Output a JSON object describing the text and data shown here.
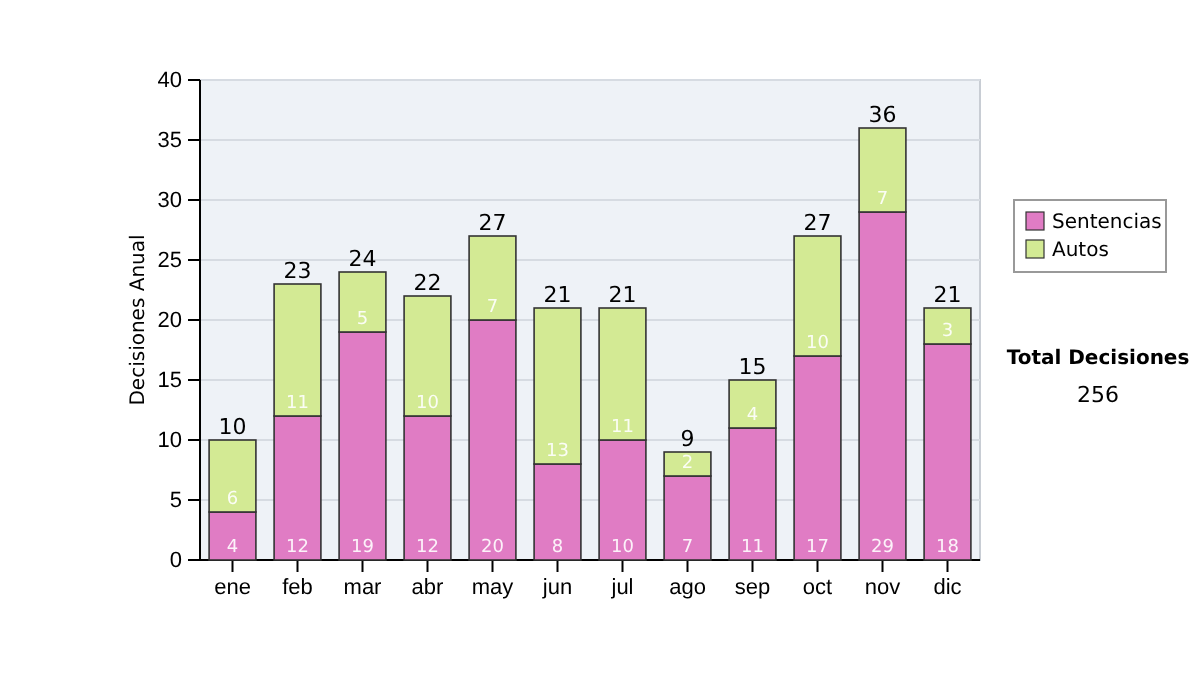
{
  "chart_data": {
    "type": "bar",
    "stacked": true,
    "ylabel": "Decisiones Anual",
    "categories": [
      "ene",
      "feb",
      "mar",
      "abr",
      "may",
      "jun",
      "jul",
      "ago",
      "sep",
      "oct",
      "nov",
      "dic"
    ],
    "series": [
      {
        "name": "Sentencias",
        "color": "#e07cc4",
        "values": [
          4,
          12,
          19,
          12,
          20,
          8,
          10,
          7,
          11,
          17,
          29,
          18
        ]
      },
      {
        "name": "Autos",
        "color": "#d3ea94",
        "values": [
          6,
          11,
          5,
          10,
          7,
          13,
          11,
          2,
          4,
          10,
          7,
          3
        ]
      }
    ],
    "totals": [
      "10",
      "23",
      "24",
      "22",
      "27",
      "21",
      "21",
      "9",
      "15",
      "27",
      "36",
      "21"
    ],
    "ylim": [
      0,
      40
    ],
    "yticks": [
      0,
      5,
      10,
      15,
      20,
      25,
      30,
      35,
      40
    ],
    "grid": "y",
    "legend": "right",
    "data_labels": true,
    "annotations": [
      "Total Decisiones",
      "256"
    ]
  }
}
